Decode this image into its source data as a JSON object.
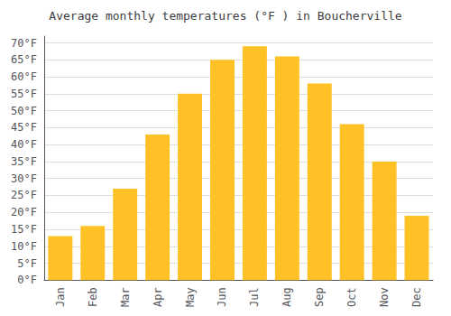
{
  "chart_data": {
    "type": "bar",
    "title": "Average monthly temperatures (°F ) in Boucherville",
    "categories": [
      "Jan",
      "Feb",
      "Mar",
      "Apr",
      "May",
      "Jun",
      "Jul",
      "Aug",
      "Sep",
      "Oct",
      "Nov",
      "Dec"
    ],
    "values": [
      13,
      16,
      27,
      43,
      55,
      65,
      69,
      66,
      58,
      46,
      35,
      19
    ],
    "color": "#FFC125",
    "ylim": [
      0,
      72
    ],
    "yticks": [
      {
        "value": 0,
        "label": "0°F"
      },
      {
        "value": 5,
        "label": "5°F"
      },
      {
        "value": 10,
        "label": "10°F"
      },
      {
        "value": 15,
        "label": "15°F"
      },
      {
        "value": 20,
        "label": "20°F"
      },
      {
        "value": 25,
        "label": "25°F"
      },
      {
        "value": 30,
        "label": "30°F"
      },
      {
        "value": 35,
        "label": "35°F"
      },
      {
        "value": 40,
        "label": "40°F"
      },
      {
        "value": 45,
        "label": "45°F"
      },
      {
        "value": 50,
        "label": "50°F"
      },
      {
        "value": 55,
        "label": "55°F"
      },
      {
        "value": 60,
        "label": "60°F"
      },
      {
        "value": 65,
        "label": "65°F"
      },
      {
        "value": 70,
        "label": "70°F"
      }
    ],
    "grid": true
  }
}
